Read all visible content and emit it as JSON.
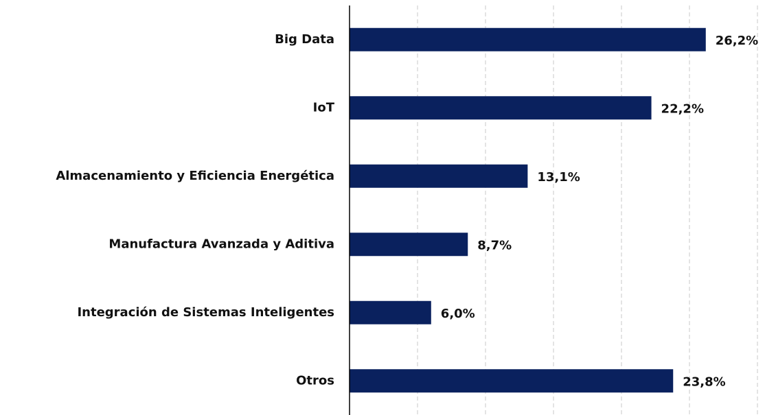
{
  "chart_data": {
    "type": "bar",
    "orientation": "horizontal",
    "categories": [
      "Big Data",
      "IoT",
      "Almacenamiento y Eficiencia Energética",
      "Manufactura Avanzada y Aditiva",
      "Integración de Sistemas Inteligentes",
      "Otros"
    ],
    "values": [
      26.2,
      22.2,
      13.1,
      8.7,
      6.0,
      23.8
    ],
    "value_labels": [
      "26,2%",
      "22,2%",
      "13,1%",
      "8,7%",
      "6,0%",
      "23,8%"
    ],
    "color": "#0a215e",
    "xlim": [
      0,
      30
    ],
    "xticks": [
      0,
      5,
      10,
      15,
      20,
      25,
      30
    ],
    "grid": true
  }
}
